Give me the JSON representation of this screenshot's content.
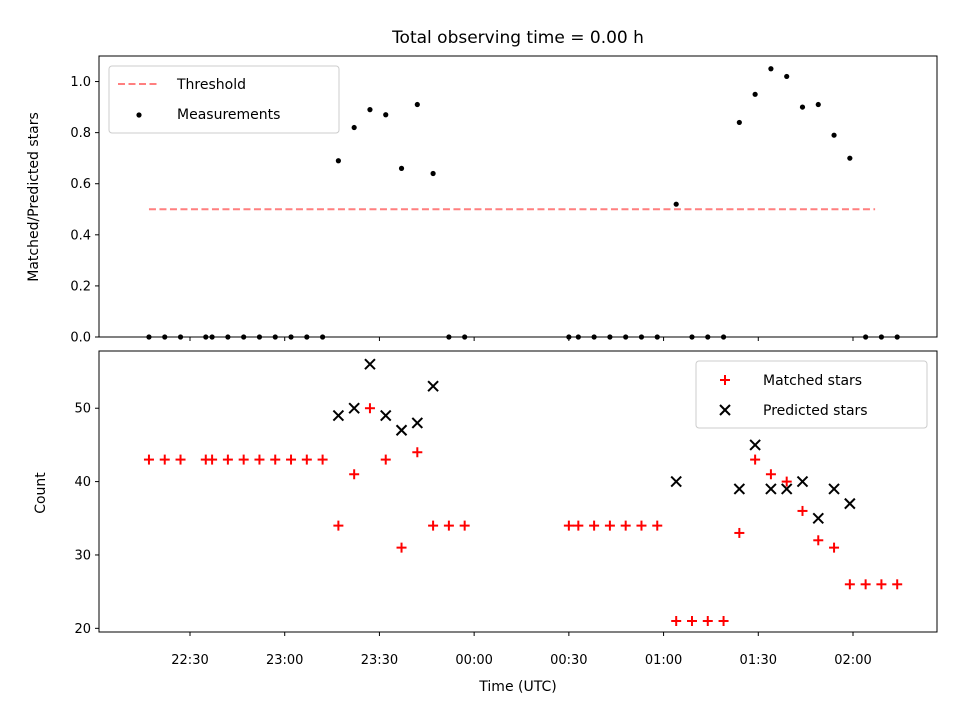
{
  "chart_data": [
    {
      "type": "scatter",
      "title": "Total observing time = 0.00 h",
      "ylabel": "Matched/Predicted stars",
      "xlabel": "",
      "ylim": [
        0,
        1.1
      ],
      "yticks": [
        "0.0",
        "0.2",
        "0.4",
        "0.6",
        "0.8",
        "1.0"
      ],
      "legend": {
        "placement": "top-left",
        "entries": [
          "Threshold",
          "Measurements"
        ]
      },
      "threshold": {
        "name": "Threshold",
        "value": 0.5,
        "x_start": "22:17",
        "x_end": "02:07",
        "color": "#ff7f7f"
      },
      "series": [
        {
          "name": "Measurements",
          "color": "#000000",
          "points": [
            [
              "22:17",
              0.0
            ],
            [
              "22:22",
              0.0
            ],
            [
              "22:27",
              0.0
            ],
            [
              "22:35",
              0.0
            ],
            [
              "22:37",
              0.0
            ],
            [
              "22:42",
              0.0
            ],
            [
              "22:47",
              0.0
            ],
            [
              "22:52",
              0.0
            ],
            [
              "22:57",
              0.0
            ],
            [
              "23:02",
              0.0
            ],
            [
              "23:07",
              0.0
            ],
            [
              "23:12",
              0.0
            ],
            [
              "23:17",
              0.69
            ],
            [
              "23:22",
              0.82
            ],
            [
              "23:27",
              0.89
            ],
            [
              "23:32",
              0.87
            ],
            [
              "23:37",
              0.66
            ],
            [
              "23:42",
              0.91
            ],
            [
              "23:47",
              0.64
            ],
            [
              "23:52",
              0.0
            ],
            [
              "23:57",
              0.0
            ],
            [
              "00:30",
              0.0
            ],
            [
              "00:33",
              0.0
            ],
            [
              "00:38",
              0.0
            ],
            [
              "00:43",
              0.0
            ],
            [
              "00:48",
              0.0
            ],
            [
              "00:53",
              0.0
            ],
            [
              "00:58",
              0.0
            ],
            [
              "01:04",
              0.52
            ],
            [
              "01:09",
              0.0
            ],
            [
              "01:14",
              0.0
            ],
            [
              "01:19",
              0.0
            ],
            [
              "01:24",
              0.84
            ],
            [
              "01:29",
              0.95
            ],
            [
              "01:34",
              1.05
            ],
            [
              "01:39",
              1.02
            ],
            [
              "01:44",
              0.9
            ],
            [
              "01:49",
              0.91
            ],
            [
              "01:54",
              0.79
            ],
            [
              "01:59",
              0.7
            ],
            [
              "02:04",
              0.0
            ],
            [
              "02:09",
              0.0
            ],
            [
              "02:14",
              0.0
            ]
          ]
        }
      ]
    },
    {
      "type": "scatter",
      "title": "",
      "xlabel": "Time (UTC)",
      "ylabel": "Count",
      "ylim": [
        19.5,
        57.8
      ],
      "yticks": [
        "20",
        "30",
        "40",
        "50"
      ],
      "xticks": [
        "22:30",
        "23:00",
        "23:30",
        "00:00",
        "00:30",
        "01:00",
        "01:30",
        "02:00"
      ],
      "legend": {
        "placement": "top-right",
        "entries": [
          "Matched stars",
          "Predicted stars"
        ]
      },
      "series": [
        {
          "name": "Matched stars",
          "marker": "plus",
          "color": "#ff0000",
          "points": [
            [
              "22:17",
              43
            ],
            [
              "22:22",
              43
            ],
            [
              "22:27",
              43
            ],
            [
              "22:35",
              43
            ],
            [
              "22:37",
              43
            ],
            [
              "22:42",
              43
            ],
            [
              "22:47",
              43
            ],
            [
              "22:52",
              43
            ],
            [
              "22:57",
              43
            ],
            [
              "23:02",
              43
            ],
            [
              "23:07",
              43
            ],
            [
              "23:12",
              43
            ],
            [
              "23:17",
              34
            ],
            [
              "23:22",
              41
            ],
            [
              "23:27",
              50
            ],
            [
              "23:32",
              43
            ],
            [
              "23:37",
              31
            ],
            [
              "23:42",
              44
            ],
            [
              "23:47",
              34
            ],
            [
              "23:52",
              34
            ],
            [
              "23:57",
              34
            ],
            [
              "00:30",
              34
            ],
            [
              "00:33",
              34
            ],
            [
              "00:38",
              34
            ],
            [
              "00:43",
              34
            ],
            [
              "00:48",
              34
            ],
            [
              "00:53",
              34
            ],
            [
              "00:58",
              34
            ],
            [
              "01:04",
              21
            ],
            [
              "01:09",
              21
            ],
            [
              "01:14",
              21
            ],
            [
              "01:19",
              21
            ],
            [
              "01:24",
              33
            ],
            [
              "01:29",
              43
            ],
            [
              "01:34",
              41
            ],
            [
              "01:39",
              40
            ],
            [
              "01:44",
              36
            ],
            [
              "01:49",
              32
            ],
            [
              "01:54",
              31
            ],
            [
              "01:59",
              26
            ],
            [
              "02:04",
              26
            ],
            [
              "02:09",
              26
            ],
            [
              "02:14",
              26
            ]
          ]
        },
        {
          "name": "Predicted stars",
          "marker": "x",
          "color": "#000000",
          "points": [
            [
              "23:17",
              49
            ],
            [
              "23:22",
              50
            ],
            [
              "23:27",
              56
            ],
            [
              "23:32",
              49
            ],
            [
              "23:37",
              47
            ],
            [
              "23:42",
              48
            ],
            [
              "23:47",
              53
            ],
            [
              "01:04",
              40
            ],
            [
              "01:24",
              39
            ],
            [
              "01:29",
              45
            ],
            [
              "01:34",
              39
            ],
            [
              "01:39",
              39
            ],
            [
              "01:44",
              40
            ],
            [
              "01:49",
              35
            ],
            [
              "01:54",
              39
            ],
            [
              "01:59",
              37
            ]
          ]
        }
      ]
    }
  ]
}
